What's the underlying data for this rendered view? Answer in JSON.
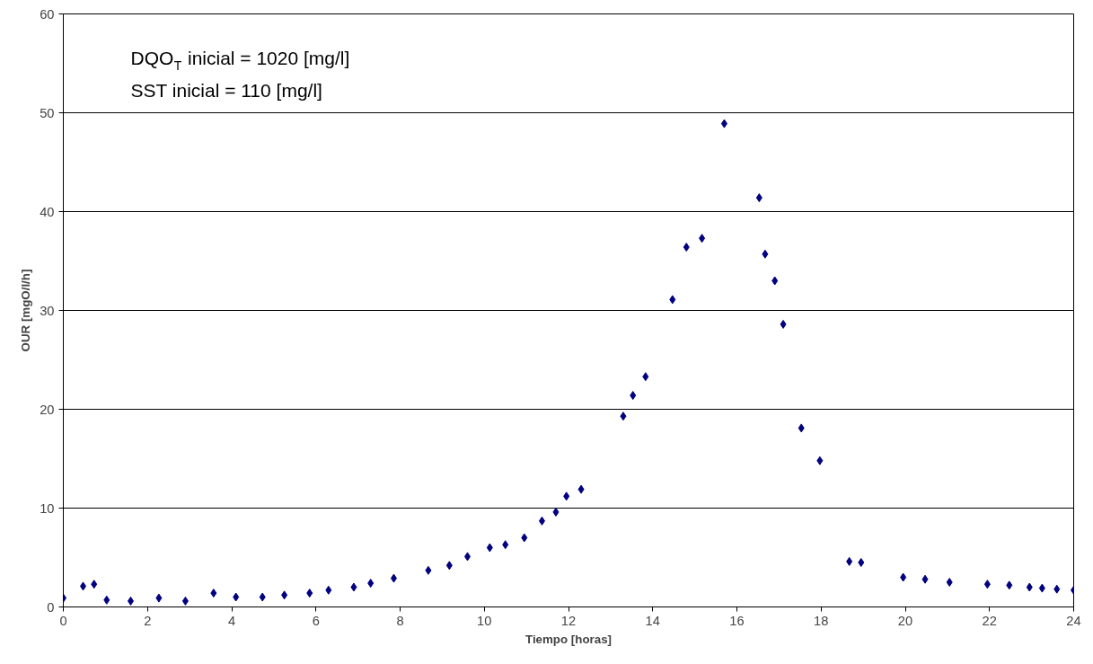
{
  "chart_data": {
    "type": "scatter",
    "xlabel": "Tiempo [horas]",
    "ylabel": "OUR [mgO/l/h]",
    "annotations": [
      "DQO$_{T}$ inicial = 1020 [mg/l]",
      "SST inicial = 110 [mg/l]"
    ],
    "x": [
      0,
      0.47,
      0.73,
      1.03,
      1.6,
      2.27,
      2.9,
      3.57,
      4.1,
      4.73,
      5.25,
      5.85,
      6.3,
      6.9,
      7.3,
      7.85,
      8.67,
      9.17,
      9.6,
      10.13,
      10.5,
      10.95,
      11.37,
      11.7,
      11.95,
      12.3,
      13.3,
      13.53,
      13.83,
      14.47,
      14.8,
      15.17,
      15.7,
      16.53,
      16.67,
      16.9,
      17.1,
      17.53,
      17.97,
      18.67,
      18.95,
      19.95,
      20.47,
      21.05,
      21.95,
      22.47,
      22.95,
      23.25,
      23.6,
      24
    ],
    "series": [
      {
        "color": "#000080",
        "values": [
          0.9,
          2.1,
          2.3,
          0.7,
          0.6,
          0.9,
          0.6,
          1.4,
          1.0,
          1.0,
          1.2,
          1.4,
          1.7,
          2.0,
          2.4,
          2.9,
          3.7,
          4.2,
          5.1,
          6.0,
          6.3,
          7.0,
          8.7,
          9.6,
          11.2,
          11.9,
          19.3,
          21.4,
          23.3,
          31.1,
          36.4,
          37.3,
          48.9,
          41.4,
          35.7,
          33.0,
          28.6,
          18.1,
          14.8,
          4.6,
          4.5,
          3.0,
          2.8,
          2.5,
          2.3,
          2.2,
          2.0,
          1.9,
          1.8,
          1.7
        ]
      }
    ],
    "xlim": [
      0,
      24
    ],
    "xticks": [
      0,
      2,
      4,
      6,
      8,
      10,
      12,
      14,
      16,
      18,
      20,
      22,
      24
    ],
    "ylim": [
      0,
      60
    ],
    "yticks": [
      0,
      10,
      20,
      30,
      40,
      50,
      60
    ],
    "grid": "y",
    "marker": "diamond"
  }
}
